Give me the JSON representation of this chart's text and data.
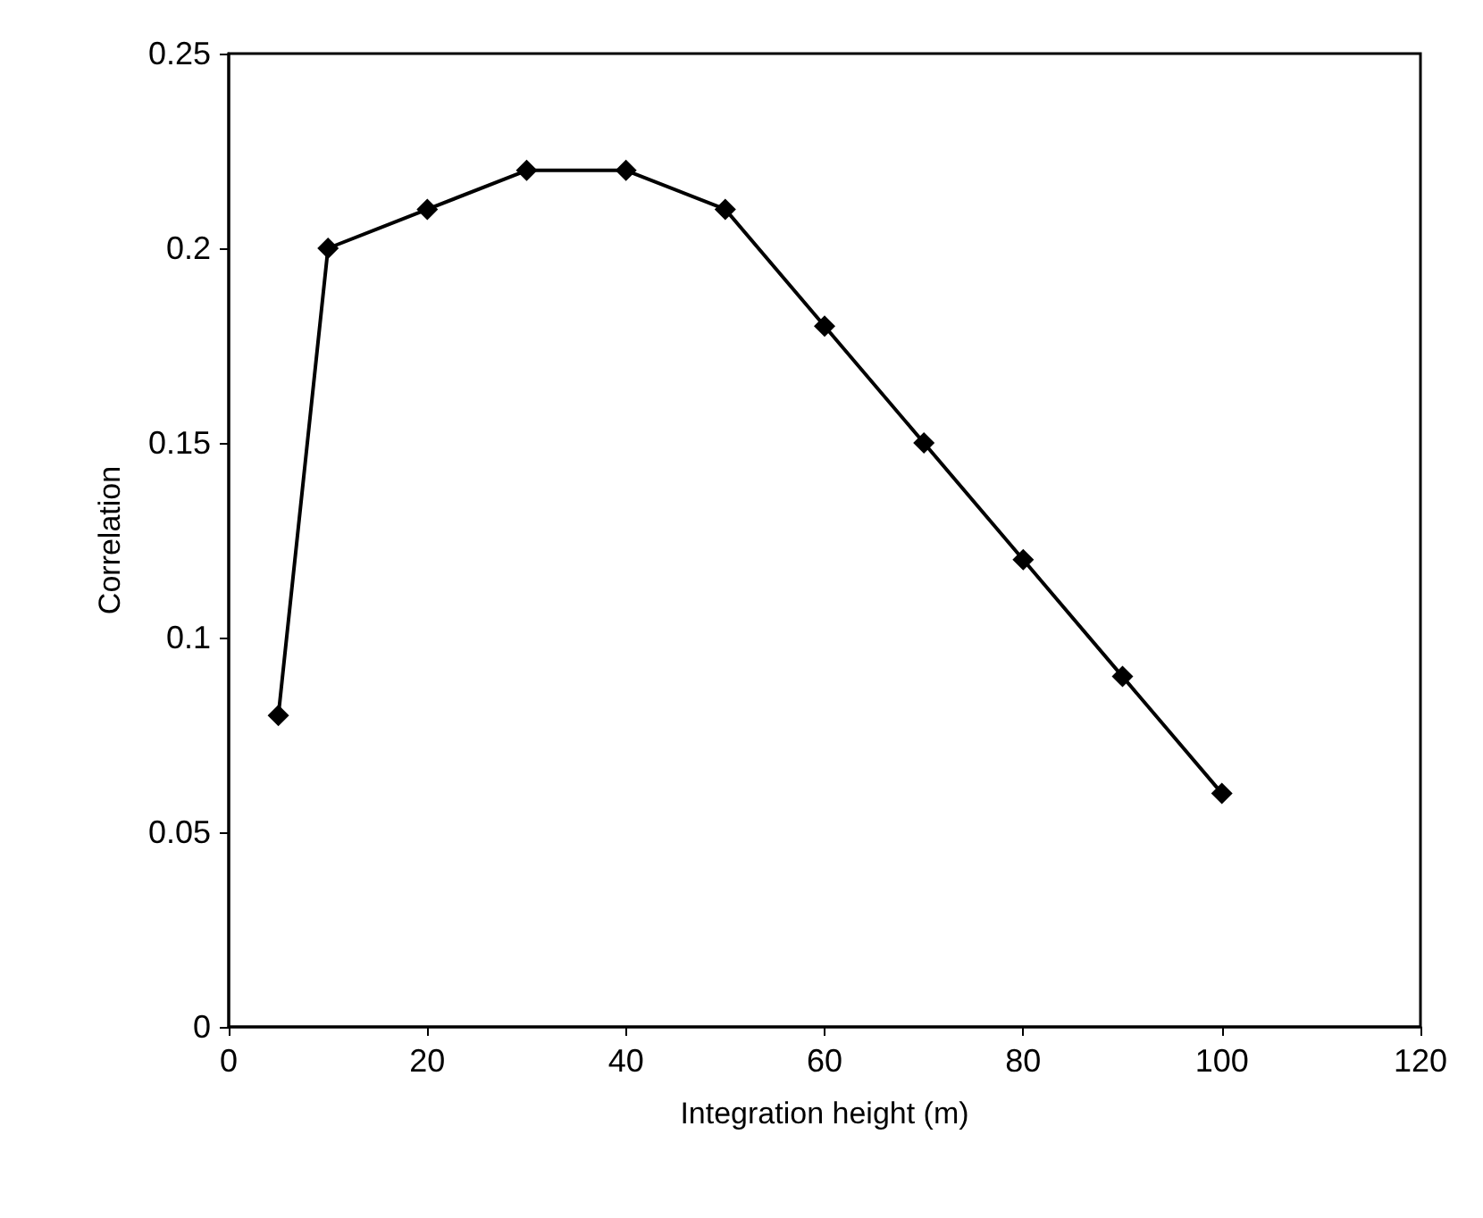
{
  "chart_data": {
    "type": "line",
    "xlabel": "Integration height (m)",
    "ylabel": "Correlation",
    "x": [
      5,
      10,
      20,
      30,
      40,
      50,
      60,
      70,
      80,
      90,
      100
    ],
    "series": [
      {
        "color": "#000000",
        "values": [
          0.08,
          0.2,
          0.21,
          0.22,
          0.22,
          0.21,
          0.18,
          0.15,
          0.12,
          0.09,
          0.06
        ]
      }
    ],
    "xlim": [
      0,
      120
    ],
    "xticks": [
      0,
      20,
      40,
      60,
      80,
      100,
      120
    ],
    "ylim": [
      0,
      0.25
    ],
    "yticks": [
      0,
      0.05,
      0.1,
      0.15,
      0.2,
      0.25
    ],
    "grid": false,
    "marker": "diamond",
    "line_style": "solid"
  }
}
